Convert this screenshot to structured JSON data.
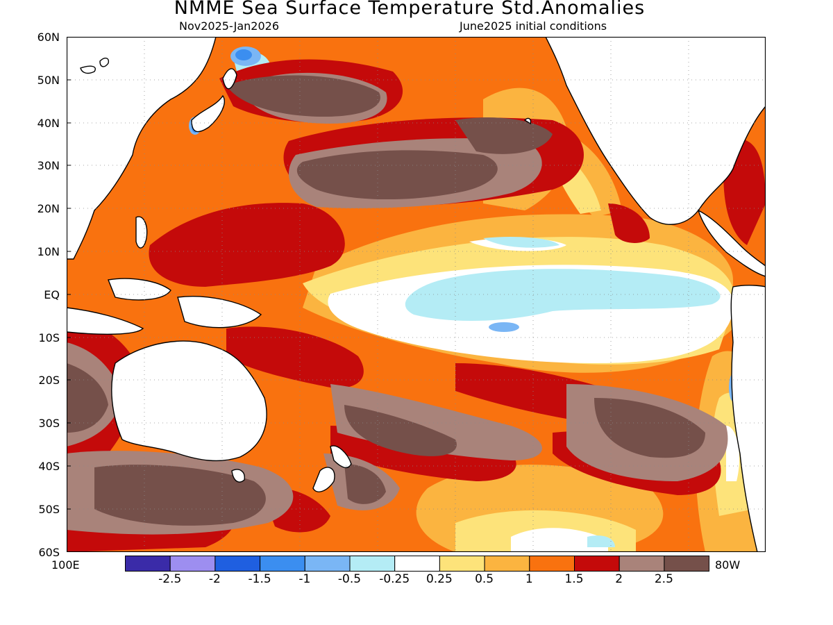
{
  "title": "NMME Sea Surface Temperature Std.Anomalies",
  "subtitle_left": "Nov2025-Jan2026",
  "subtitle_right": "June2025 initial conditions",
  "lat_labels": [
    "60N",
    "50N",
    "40N",
    "30N",
    "20N",
    "10N",
    "EQ",
    "10S",
    "20S",
    "30S",
    "40S",
    "50S",
    "60S"
  ],
  "lon_labels": {
    "west": "100E",
    "east": "80W"
  },
  "colorbar": {
    "colors": [
      "#3a2ba8",
      "#9d8ef0",
      "#1f5fe0",
      "#3b8ef0",
      "#7ab6f5",
      "#b4ecf5",
      "#ffffff",
      "#fde37a",
      "#fbb440",
      "#f9720f",
      "#c40a0a",
      "#a9837a",
      "#75504a"
    ],
    "tick_labels": [
      "-2.5",
      "-2",
      "-1.5",
      "-1",
      "-0.5",
      "-0.25",
      "0.25",
      "0.5",
      "1",
      "1.5",
      "2",
      "2.5"
    ]
  },
  "chart_data": {
    "type": "heatmap",
    "title": "NMME Sea Surface Temperature Std.Anomalies",
    "subtitle": [
      "Nov2025-Jan2026",
      "June2025 initial conditions"
    ],
    "domain": {
      "lat": [
        -60,
        60
      ],
      "lon": [
        100,
        280
      ]
    },
    "grid": true,
    "levels": [
      -2.5,
      -2,
      -1.5,
      -1,
      -0.5,
      -0.25,
      0.25,
      0.5,
      1,
      1.5,
      2,
      2.5
    ],
    "features": [
      {
        "region": "central-eastern equatorial Pacific",
        "lat": [
          -12,
          8
        ],
        "lon": [
          170,
          265
        ],
        "anomaly_range": [
          -0.5,
          0.25
        ]
      },
      {
        "region": "north Pacific",
        "lat": [
          25,
          55
        ],
        "lon": [
          150,
          235
        ],
        "anomaly_range": [
          2,
          3
        ]
      },
      {
        "region": "western tropical Pacific",
        "lat": [
          -15,
          20
        ],
        "lon": [
          120,
          170
        ],
        "anomaly_range": [
          1.5,
          2.5
        ]
      },
      {
        "region": "south Pacific",
        "lat": [
          -50,
          -25
        ],
        "lon": [
          140,
          270
        ],
        "anomaly_range": [
          2,
          3
        ]
      }
    ]
  }
}
